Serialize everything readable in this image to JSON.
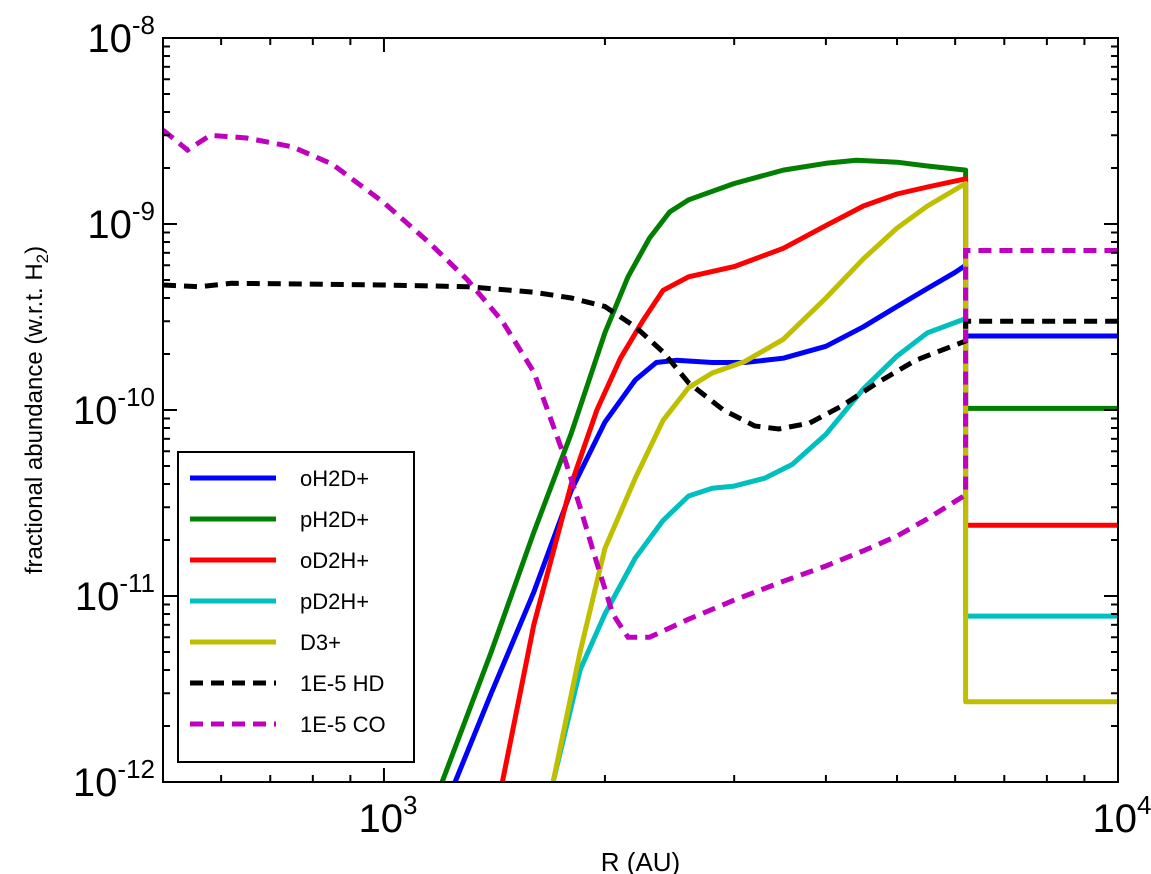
{
  "chart_data": {
    "type": "line",
    "xlabel": "R (AU)",
    "ylabel": "fractional abundance (w.r.t. H",
    "ylabel_sub": "2",
    "ylabel_end": ")",
    "x_scale": "log",
    "y_scale": "log",
    "xlim": [
      500,
      10000
    ],
    "ylim": [
      1e-12,
      1e-08
    ],
    "grid": false,
    "legend_position": "lower-left",
    "x_ticks": [
      {
        "value": 1000,
        "base": "10",
        "exp": "3"
      },
      {
        "value": 10000,
        "base": "10",
        "exp": "4"
      }
    ],
    "y_ticks": [
      {
        "value": 1e-12,
        "base": "10",
        "exp": "-12"
      },
      {
        "value": 1e-11,
        "base": "10",
        "exp": "-11"
      },
      {
        "value": 1e-10,
        "base": "10",
        "exp": "-10"
      },
      {
        "value": 1e-09,
        "base": "10",
        "exp": "-9"
      },
      {
        "value": 1e-08,
        "base": "10",
        "exp": "-8"
      }
    ],
    "series": [
      {
        "name": "oH2D+",
        "color": "#0000ff",
        "dash": false,
        "points": [
          [
            1250,
            1e-12
          ],
          [
            1400,
            3e-12
          ],
          [
            1600,
            1.05e-11
          ],
          [
            1800,
            3.7e-11
          ],
          [
            2000,
            8.6e-11
          ],
          [
            2200,
            1.45e-10
          ],
          [
            2350,
            1.8e-10
          ],
          [
            2500,
            1.85e-10
          ],
          [
            2800,
            1.8e-10
          ],
          [
            3100,
            1.8e-10
          ],
          [
            3500,
            1.9e-10
          ],
          [
            4000,
            2.2e-10
          ],
          [
            4500,
            2.8e-10
          ],
          [
            5000,
            3.6e-10
          ],
          [
            5500,
            4.5e-10
          ],
          [
            6000,
            5.5e-10
          ],
          [
            6200,
            6e-10
          ]
        ],
        "after_jump": 2.5e-10
      },
      {
        "name": "pH2D+",
        "color": "#007f00",
        "dash": false,
        "points": [
          [
            1200,
            1e-12
          ],
          [
            1400,
            5e-12
          ],
          [
            1600,
            2.2e-11
          ],
          [
            1800,
            7.5e-11
          ],
          [
            2000,
            2.6e-10
          ],
          [
            2150,
            5.2e-10
          ],
          [
            2300,
            8.4e-10
          ],
          [
            2450,
            1.16e-09
          ],
          [
            2600,
            1.35e-09
          ],
          [
            3000,
            1.65e-09
          ],
          [
            3500,
            1.95e-09
          ],
          [
            4000,
            2.12e-09
          ],
          [
            4400,
            2.2e-09
          ],
          [
            5000,
            2.15e-09
          ],
          [
            5500,
            2.05e-09
          ],
          [
            6200,
            1.95e-09
          ]
        ],
        "after_jump": 1.02e-10
      },
      {
        "name": "oD2H+",
        "color": "#ff0000",
        "dash": false,
        "points": [
          [
            1450,
            1e-12
          ],
          [
            1600,
            7e-12
          ],
          [
            1800,
            4e-11
          ],
          [
            1950,
            1e-10
          ],
          [
            2100,
            1.9e-10
          ],
          [
            2250,
            3e-10
          ],
          [
            2400,
            4.4e-10
          ],
          [
            2600,
            5.2e-10
          ],
          [
            3000,
            5.9e-10
          ],
          [
            3500,
            7.4e-10
          ],
          [
            4000,
            9.8e-10
          ],
          [
            4500,
            1.25e-09
          ],
          [
            5000,
            1.45e-09
          ],
          [
            5500,
            1.58e-09
          ],
          [
            6200,
            1.75e-09
          ]
        ],
        "after_jump": 2.4e-11
      },
      {
        "name": "pD2H+",
        "color": "#00bfbf",
        "dash": false,
        "points": [
          [
            1700,
            1e-12
          ],
          [
            1850,
            4e-12
          ],
          [
            2000,
            8e-12
          ],
          [
            2200,
            1.6e-11
          ],
          [
            2400,
            2.55e-11
          ],
          [
            2600,
            3.45e-11
          ],
          [
            2800,
            3.8e-11
          ],
          [
            3000,
            3.9e-11
          ],
          [
            3300,
            4.3e-11
          ],
          [
            3600,
            5.1e-11
          ],
          [
            4000,
            7.4e-11
          ],
          [
            4500,
            1.3e-10
          ],
          [
            5000,
            1.95e-10
          ],
          [
            5500,
            2.6e-10
          ],
          [
            6200,
            3.1e-10
          ]
        ],
        "after_jump": 7.8e-12
      },
      {
        "name": "D3+",
        "color": "#bfbf00",
        "dash": false,
        "points": [
          [
            1700,
            1e-12
          ],
          [
            1850,
            5e-12
          ],
          [
            2000,
            1.8e-11
          ],
          [
            2200,
            4.3e-11
          ],
          [
            2400,
            8.8e-11
          ],
          [
            2600,
            1.32e-10
          ],
          [
            2800,
            1.58e-10
          ],
          [
            3100,
            1.82e-10
          ],
          [
            3500,
            2.4e-10
          ],
          [
            4000,
            4e-10
          ],
          [
            4500,
            6.5e-10
          ],
          [
            5000,
            9.5e-10
          ],
          [
            5500,
            1.25e-09
          ],
          [
            6200,
            1.65e-09
          ]
        ],
        "after_jump": 2.7e-12
      },
      {
        "name": "1E-5 HD",
        "color": "#000000",
        "dash": true,
        "points": [
          [
            500,
            4.7e-10
          ],
          [
            560,
            4.6e-10
          ],
          [
            620,
            4.8e-10
          ],
          [
            800,
            4.75e-10
          ],
          [
            1000,
            4.7e-10
          ],
          [
            1300,
            4.6e-10
          ],
          [
            1600,
            4.3e-10
          ],
          [
            1800,
            4e-10
          ],
          [
            2000,
            3.6e-10
          ],
          [
            2200,
            2.8e-10
          ],
          [
            2400,
            2.05e-10
          ],
          [
            2600,
            1.4e-10
          ],
          [
            2900,
            1e-10
          ],
          [
            3200,
            8.2e-11
          ],
          [
            3450,
            7.9e-11
          ],
          [
            3800,
            8.5e-11
          ],
          [
            4200,
            1.05e-10
          ],
          [
            4700,
            1.4e-10
          ],
          [
            5300,
            1.85e-10
          ],
          [
            6200,
            2.35e-10
          ]
        ],
        "after_jump": 3e-10
      },
      {
        "name": "1E-5 CO",
        "color": "#bf00bf",
        "dash": true,
        "points": [
          [
            500,
            3.2e-09
          ],
          [
            540,
            2.5e-09
          ],
          [
            580,
            3e-09
          ],
          [
            650,
            2.9e-09
          ],
          [
            750,
            2.6e-09
          ],
          [
            850,
            2.1e-09
          ],
          [
            1000,
            1.3e-09
          ],
          [
            1150,
            8e-10
          ],
          [
            1300,
            5e-10
          ],
          [
            1450,
            3e-10
          ],
          [
            1600,
            1.6e-10
          ],
          [
            1750,
            6e-11
          ],
          [
            1850,
            3e-11
          ],
          [
            1950,
            1.5e-11
          ],
          [
            2050,
            8e-12
          ],
          [
            2150,
            6e-12
          ],
          [
            2300,
            6e-12
          ],
          [
            2600,
            7.5e-12
          ],
          [
            3000,
            9.5e-12
          ],
          [
            3500,
            1.2e-11
          ],
          [
            4000,
            1.45e-11
          ],
          [
            4500,
            1.75e-11
          ],
          [
            5000,
            2.1e-11
          ],
          [
            5500,
            2.6e-11
          ],
          [
            6200,
            3.5e-11
          ]
        ],
        "after_jump": 7.2e-10
      }
    ],
    "jump_x": 6200
  }
}
